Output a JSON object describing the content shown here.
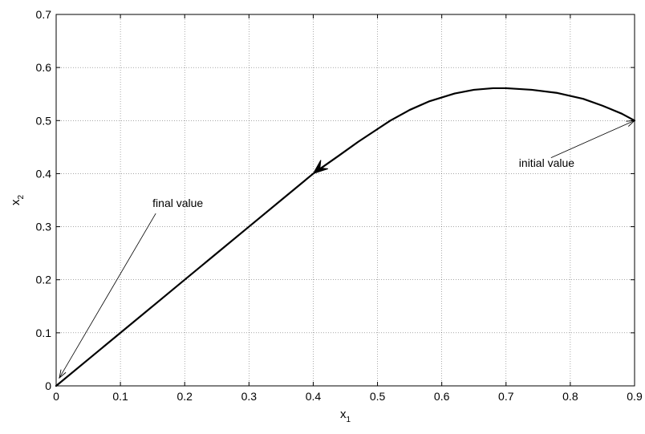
{
  "chart_data": {
    "type": "line",
    "title": "",
    "xlabel": {
      "main": "x",
      "sub": "1"
    },
    "ylabel": {
      "main": "x",
      "sub": "2"
    },
    "xlim": [
      0,
      0.9
    ],
    "ylim": [
      0,
      0.7
    ],
    "x_ticks": [
      0,
      0.1,
      0.2,
      0.3,
      0.4,
      0.5,
      0.6,
      0.7,
      0.8,
      0.9
    ],
    "x_tick_labels": [
      "0",
      "0.1",
      "0.2",
      "0.3",
      "0.4",
      "0.5",
      "0.6",
      "0.7",
      "0.8",
      "0.9"
    ],
    "y_ticks": [
      0,
      0.1,
      0.2,
      0.3,
      0.4,
      0.5,
      0.6,
      0.7
    ],
    "y_tick_labels": [
      "0",
      "0.1",
      "0.2",
      "0.3",
      "0.4",
      "0.5",
      "0.6",
      "0.7"
    ],
    "grid": true,
    "series": [
      {
        "color": "#000000",
        "direction": "from initial value at (0.9, 0.5) to final value at (0, 0)",
        "x": [
          0.9,
          0.88,
          0.85,
          0.82,
          0.78,
          0.74,
          0.7,
          0.68,
          0.65,
          0.62,
          0.58,
          0.55,
          0.52,
          0.5,
          0.47,
          0.44,
          0.4,
          0.35,
          0.3,
          0.25,
          0.2,
          0.15,
          0.1,
          0.05,
          0.0
        ],
        "y": [
          0.5,
          0.513,
          0.528,
          0.541,
          0.552,
          0.558,
          0.561,
          0.561,
          0.558,
          0.551,
          0.536,
          0.52,
          0.5,
          0.484,
          0.46,
          0.434,
          0.4,
          0.35,
          0.3,
          0.25,
          0.2,
          0.15,
          0.1,
          0.05,
          0.0
        ]
      }
    ],
    "direction_arrow": {
      "x": 0.4,
      "y": 0.4
    },
    "annotations": [
      {
        "text": "initial value",
        "text_at": {
          "x": 0.72,
          "y": 0.42
        },
        "arrow_from": {
          "x": 0.77,
          "y": 0.43
        },
        "arrow_to": {
          "x": 0.9,
          "y": 0.5
        }
      },
      {
        "text": "final value",
        "text_at": {
          "x": 0.15,
          "y": 0.345
        },
        "arrow_from": {
          "x": 0.155,
          "y": 0.325
        },
        "arrow_to": {
          "x": 0.005,
          "y": 0.015
        }
      }
    ]
  }
}
